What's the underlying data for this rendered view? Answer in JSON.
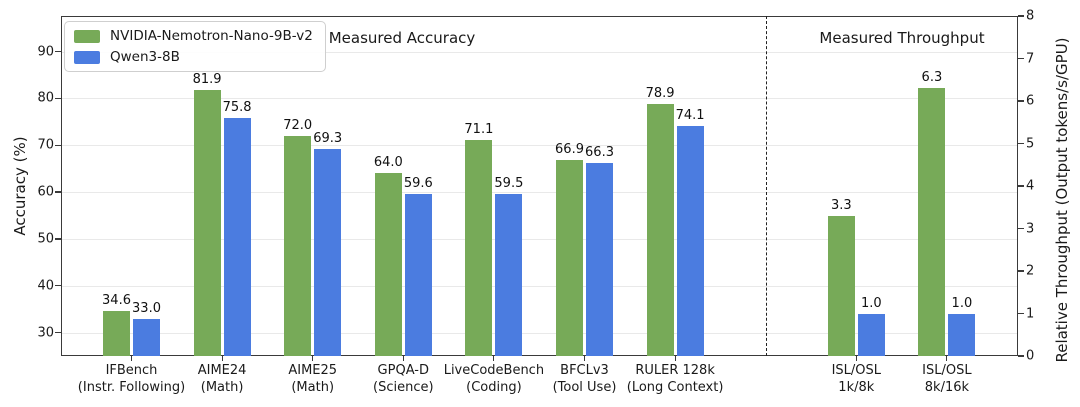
{
  "figure": {
    "accuracy_section_title": "Measured Accuracy",
    "throughput_section_title": "Measured Throughput",
    "background": "#ffffff"
  },
  "chart_data": {
    "type": "bar",
    "series": [
      {
        "name": "NVIDIA-Nemotron-Nano-9B-v2",
        "color": "#77aa58"
      },
      {
        "name": "Qwen3-8B",
        "color": "#4b7ce0"
      }
    ],
    "left_axis": {
      "label": "Accuracy (%)",
      "ticks": [
        30,
        40,
        50,
        60,
        70,
        80,
        90
      ],
      "range": [
        25,
        97.6
      ],
      "grid": true
    },
    "right_axis": {
      "label": "Relative Throughput (Output tokens/s/GPU)",
      "ticks": [
        0,
        1,
        2,
        3,
        4,
        5,
        6,
        7,
        8
      ],
      "range": [
        0,
        8
      ]
    },
    "groups": [
      {
        "category": "IFBench",
        "subcategory": "(Instr. Following)",
        "axis": "left",
        "slot": 0,
        "values": [
          34.6,
          33.0
        ]
      },
      {
        "category": "AIME24",
        "subcategory": "(Math)",
        "axis": "left",
        "slot": 1,
        "values": [
          81.9,
          75.8
        ]
      },
      {
        "category": "AIME25",
        "subcategory": "(Math)",
        "axis": "left",
        "slot": 2,
        "values": [
          72.0,
          69.3
        ]
      },
      {
        "category": "GPQA-D",
        "subcategory": "(Science)",
        "axis": "left",
        "slot": 3,
        "values": [
          64.0,
          59.6
        ]
      },
      {
        "category": "LiveCodeBench",
        "subcategory": "(Coding)",
        "axis": "left",
        "slot": 4,
        "values": [
          71.1,
          59.5
        ]
      },
      {
        "category": "BFCLv3",
        "subcategory": "(Tool Use)",
        "axis": "left",
        "slot": 5,
        "values": [
          66.9,
          66.3
        ]
      },
      {
        "category": "RULER 128k",
        "subcategory": "(Long Context)",
        "axis": "left",
        "slot": 6,
        "values": [
          78.9,
          74.1
        ]
      },
      {
        "category": "ISL/OSL",
        "subcategory": "1k/8k",
        "axis": "right",
        "slot": 8,
        "values": [
          3.3,
          1.0
        ]
      },
      {
        "category": "ISL/OSL",
        "subcategory": "8k/16k",
        "axis": "right",
        "slot": 9,
        "values": [
          6.3,
          1.0
        ]
      }
    ],
    "separator_slot": 7
  }
}
